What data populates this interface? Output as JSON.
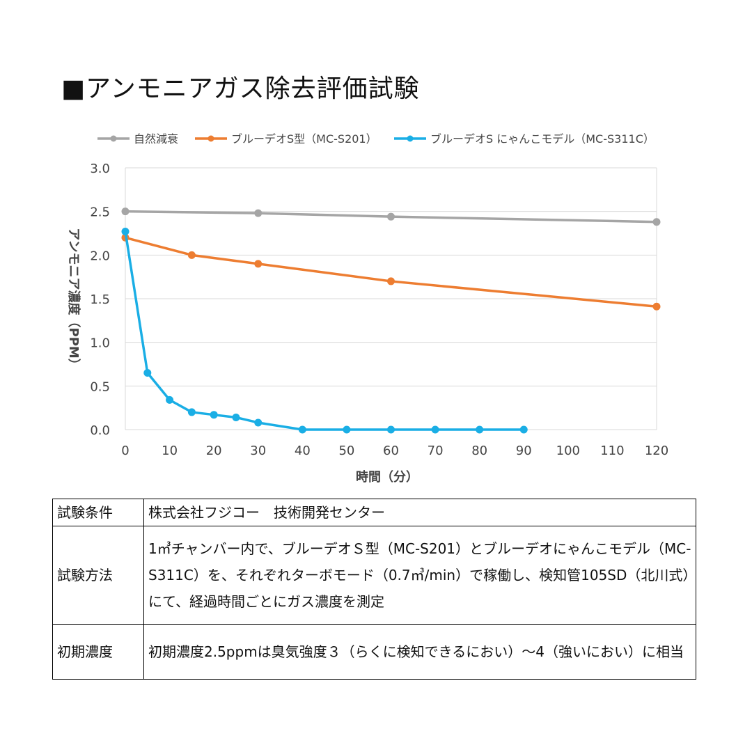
{
  "title": "■アンモニアガス除去評価試験",
  "colors": {
    "natural": "#a5a5a5",
    "s201": "#ed7d31",
    "s311c": "#1aaee5",
    "grid": "#d9d9d9"
  },
  "chart_data": {
    "type": "line",
    "title": "",
    "xlabel": "時間（分）",
    "ylabel": "アンモニア濃度（PPM）",
    "xlim": [
      0,
      120
    ],
    "ylim": [
      0,
      3.0
    ],
    "xticks": [
      "0",
      "10",
      "20",
      "30",
      "40",
      "50",
      "60",
      "70",
      "80",
      "90",
      "100",
      "110",
      "120"
    ],
    "yticks": [
      "0.0",
      "0.5",
      "1.0",
      "1.5",
      "2.0",
      "2.5",
      "3.0"
    ],
    "grid": true,
    "legend_position": "top",
    "series": [
      {
        "name": "自然減衰",
        "color": "#a5a5a5",
        "x": [
          0,
          30,
          60,
          120
        ],
        "y": [
          2.5,
          2.48,
          2.44,
          2.38
        ]
      },
      {
        "name": "ブルーデオS型（MC-S201）",
        "color": "#ed7d31",
        "x": [
          0,
          15,
          30,
          60,
          120
        ],
        "y": [
          2.2,
          2.0,
          1.9,
          1.7,
          1.41
        ]
      },
      {
        "name": "ブルーデオS にゃんこモデル（MC-S311C）",
        "color": "#1aaee5",
        "x": [
          0,
          5,
          10,
          15,
          20,
          25,
          30,
          40,
          50,
          60,
          70,
          80,
          90
        ],
        "y": [
          2.27,
          0.65,
          0.34,
          0.2,
          0.17,
          0.14,
          0.08,
          0,
          0,
          0,
          0,
          0,
          0
        ]
      }
    ]
  },
  "table": {
    "rows": [
      {
        "label": "試験条件",
        "text": "株式会社フジコー　技術開発センター"
      },
      {
        "label": "試験方法",
        "text": "1㎥チャンバー内で、ブルーデオＳ型（MC-S201）とブルーデオにゃんこモデル（MC-S311C）を、それぞれターボモード（0.7㎥/min）で稼働し、検知管105SD（北川式）にて、経過時間ごとにガス濃度を測定"
      },
      {
        "label": "初期濃度",
        "text": "初期濃度2.5ppmは臭気強度３（らくに検知できるにおい）～4（強いにおい）に相当"
      }
    ]
  }
}
